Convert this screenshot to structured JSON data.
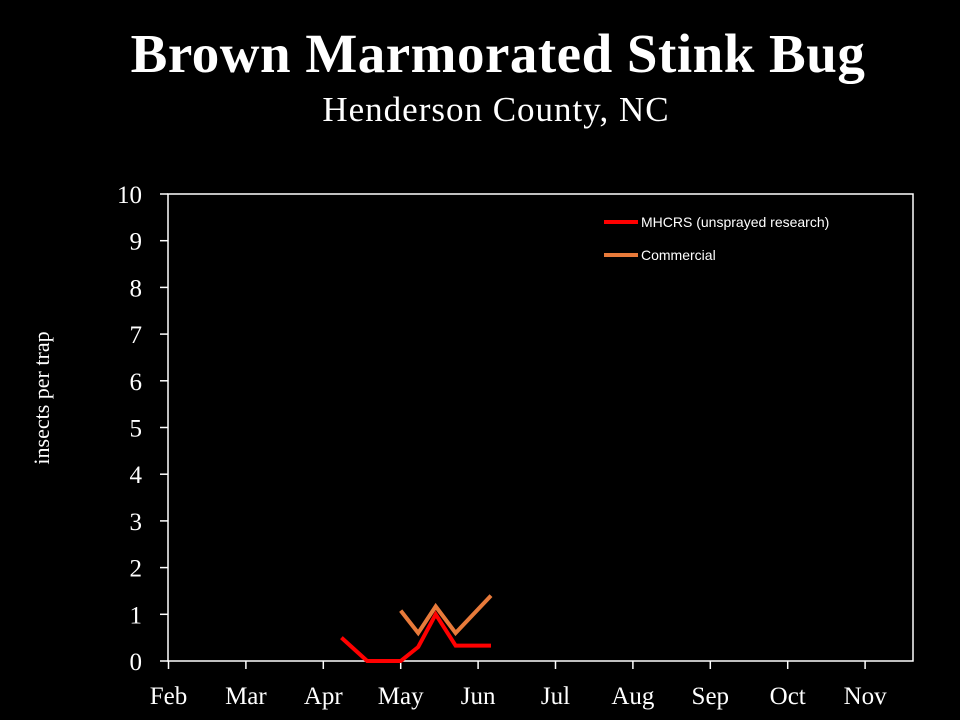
{
  "chart_data": {
    "type": "line",
    "title": "Brown Marmorated Stink Bug",
    "subtitle": "Henderson County, NC",
    "ylabel": "insects per trap",
    "xlabel": "",
    "x_tick_labels": [
      "Feb",
      "Mar",
      "Apr",
      "May",
      "Jun",
      "Jul",
      "Aug",
      "Sep",
      "Oct",
      "Nov"
    ],
    "y_ticks": [
      0,
      1,
      2,
      3,
      4,
      5,
      6,
      7,
      8,
      9,
      10
    ],
    "ylim": [
      0,
      10
    ],
    "grid": false,
    "legend_position": "top-right",
    "series": [
      {
        "name": "MHCRS (unsprayed research)",
        "color": "#ff0000",
        "points": [
          {
            "x": "Apr 8",
            "y": 0.5
          },
          {
            "x": "Apr 18",
            "y": 0.0
          },
          {
            "x": "Apr 28",
            "y": 0.0
          },
          {
            "x": "May 1",
            "y": 0.0
          },
          {
            "x": "May 8",
            "y": 0.3
          },
          {
            "x": "May 15",
            "y": 1.0
          },
          {
            "x": "May 23",
            "y": 0.33
          },
          {
            "x": "Jun 6",
            "y": 0.33
          }
        ]
      },
      {
        "name": "Commercial",
        "color": "#e87a3a",
        "points": [
          {
            "x": "May 1",
            "y": 1.08
          },
          {
            "x": "May 8",
            "y": 0.6
          },
          {
            "x": "May 15",
            "y": 1.17
          },
          {
            "x": "May 23",
            "y": 0.6
          },
          {
            "x": "Jun 6",
            "y": 1.4
          }
        ]
      }
    ]
  }
}
